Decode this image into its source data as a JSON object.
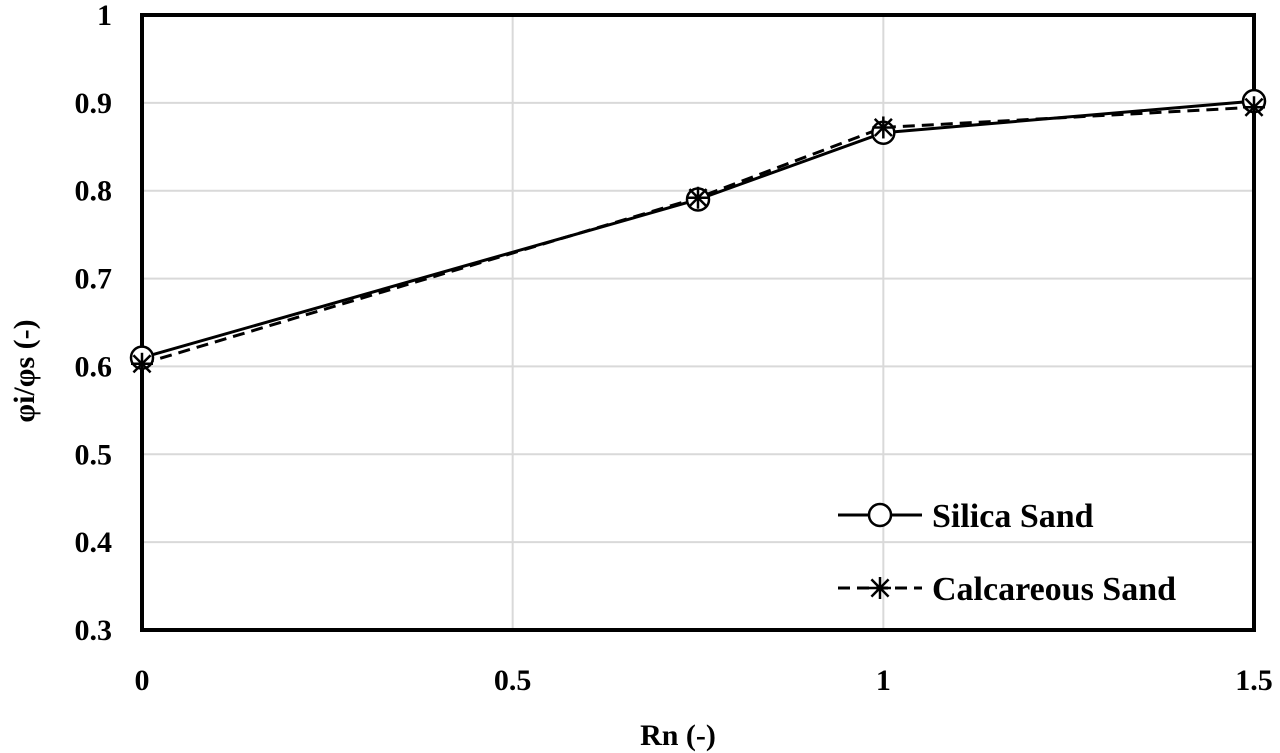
{
  "chart_data": {
    "type": "line",
    "title": "",
    "xlabel": "Rn (-)",
    "ylabel": "φi/φs (-)",
    "xlim": [
      0,
      1.5
    ],
    "ylim": [
      0.3,
      1
    ],
    "x_ticks": [
      0,
      0.5,
      1,
      1.5
    ],
    "y_ticks": [
      0.3,
      0.4,
      0.5,
      0.6,
      0.7,
      0.8,
      0.9,
      1
    ],
    "x_tick_labels": [
      "0",
      "0.5",
      "1",
      "1.5"
    ],
    "y_tick_labels": [
      "0.3",
      "0.4",
      "0.5",
      "0.6",
      "0.7",
      "0.8",
      "0.9",
      "1"
    ],
    "grid": true,
    "legend_position": "bottom-right",
    "series": [
      {
        "name": "Silica Sand",
        "marker": "circle",
        "line_style": "solid",
        "color": "#000000",
        "x": [
          0,
          0.75,
          1,
          1.5
        ],
        "y": [
          0.61,
          0.79,
          0.866,
          0.902
        ]
      },
      {
        "name": "Calcareous Sand",
        "marker": "asterisk",
        "line_style": "dashed",
        "color": "#000000",
        "x": [
          0,
          0.75,
          1,
          1.5
        ],
        "y": [
          0.603,
          0.792,
          0.872,
          0.895
        ]
      }
    ]
  }
}
